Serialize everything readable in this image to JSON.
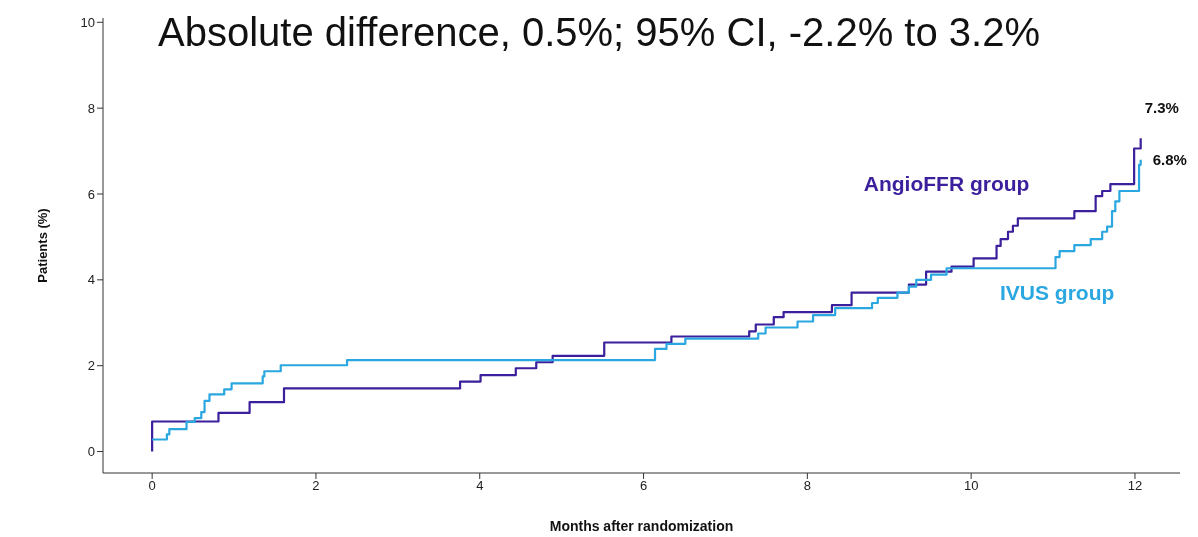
{
  "chart_data": {
    "type": "step",
    "title": "Absolute difference, 0.5%; 95% CI, -2.2% to 3.2%",
    "xlabel": "Months after randomization",
    "ylabel": "Patients (%)",
    "xlim": [
      -0.6,
      12.55
    ],
    "xticks": [
      0,
      2,
      4,
      6,
      8,
      10,
      12
    ],
    "ylim": [
      -0.5,
      10.1
    ],
    "yticks": [
      0,
      2,
      4,
      6,
      8,
      10
    ],
    "grid": false,
    "legend": false,
    "marker": "none",
    "line_style": "solid",
    "series": [
      {
        "name": "AngioFFR group",
        "color": "#3b1f9c",
        "x": [
          0,
          0,
          0.81,
          1.19,
          1.61,
          3.76,
          4.01,
          4.44,
          4.69,
          4.89,
          5.52,
          6.34,
          7.29,
          7.37,
          7.59,
          7.71,
          8.3,
          8.54,
          9.24,
          9.45,
          9.76,
          10.03,
          10.31,
          10.36,
          10.45,
          10.51,
          10.57,
          11.26,
          11.52,
          11.6,
          11.7,
          11.99,
          12.07
        ],
        "values": [
          0,
          0.7,
          0.9,
          1.15,
          1.47,
          1.63,
          1.78,
          1.94,
          2.08,
          2.23,
          2.54,
          2.68,
          2.8,
          2.96,
          3.13,
          3.25,
          3.41,
          3.7,
          3.89,
          4.19,
          4.31,
          4.5,
          4.79,
          4.95,
          5.12,
          5.26,
          5.43,
          5.6,
          5.95,
          6.07,
          6.23,
          7.06,
          7.3
        ]
      },
      {
        "name": "IVUS group",
        "color": "#2aa7e0",
        "x": [
          0,
          0.18,
          0.21,
          0.42,
          0.52,
          0.6,
          0.64,
          0.7,
          0.88,
          0.97,
          1.35,
          1.37,
          1.57,
          2.38,
          6.14,
          6.28,
          6.51,
          7.4,
          7.49,
          7.88,
          8.07,
          8.34,
          8.79,
          8.86,
          9.1,
          9.24,
          9.33,
          9.51,
          9.7,
          11.03,
          11.08,
          11.26,
          11.46,
          11.6,
          11.66,
          11.72,
          11.76,
          11.81,
          12.05,
          12.07
        ],
        "values": [
          0.28,
          0.4,
          0.52,
          0.69,
          0.78,
          0.92,
          1.18,
          1.33,
          1.45,
          1.59,
          1.75,
          1.87,
          2.01,
          2.13,
          2.39,
          2.51,
          2.63,
          2.75,
          2.89,
          3.03,
          3.18,
          3.34,
          3.46,
          3.58,
          3.7,
          3.84,
          4.0,
          4.12,
          4.27,
          4.53,
          4.67,
          4.81,
          4.95,
          5.12,
          5.24,
          5.6,
          5.83,
          6.07,
          6.68,
          6.8
        ]
      }
    ],
    "annotations": [
      {
        "text": "7.3%",
        "x": 12.07,
        "y": 7.3
      },
      {
        "text": "6.8%",
        "x": 12.07,
        "y": 6.8
      }
    ]
  }
}
